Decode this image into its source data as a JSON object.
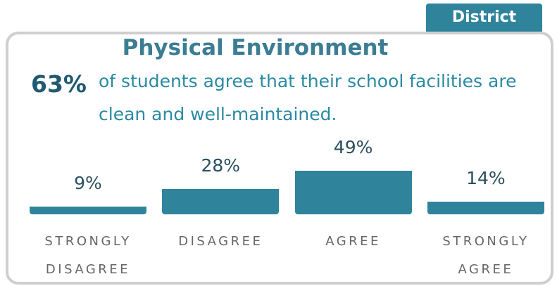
{
  "tab": "District",
  "highlight": "63%",
  "statement": "of students agree that their school facilities are clean and well-maintained.",
  "chart_data": {
    "type": "bar",
    "title": "Physical Environment",
    "categories": [
      "STRONGLY DISAGREE",
      "DISAGREE",
      "AGREE",
      "STRONGLY AGREE"
    ],
    "values": [
      9,
      28,
      49,
      14
    ],
    "value_labels": [
      "9%",
      "28%",
      "49%",
      "14%"
    ],
    "color": "#2f849c"
  }
}
